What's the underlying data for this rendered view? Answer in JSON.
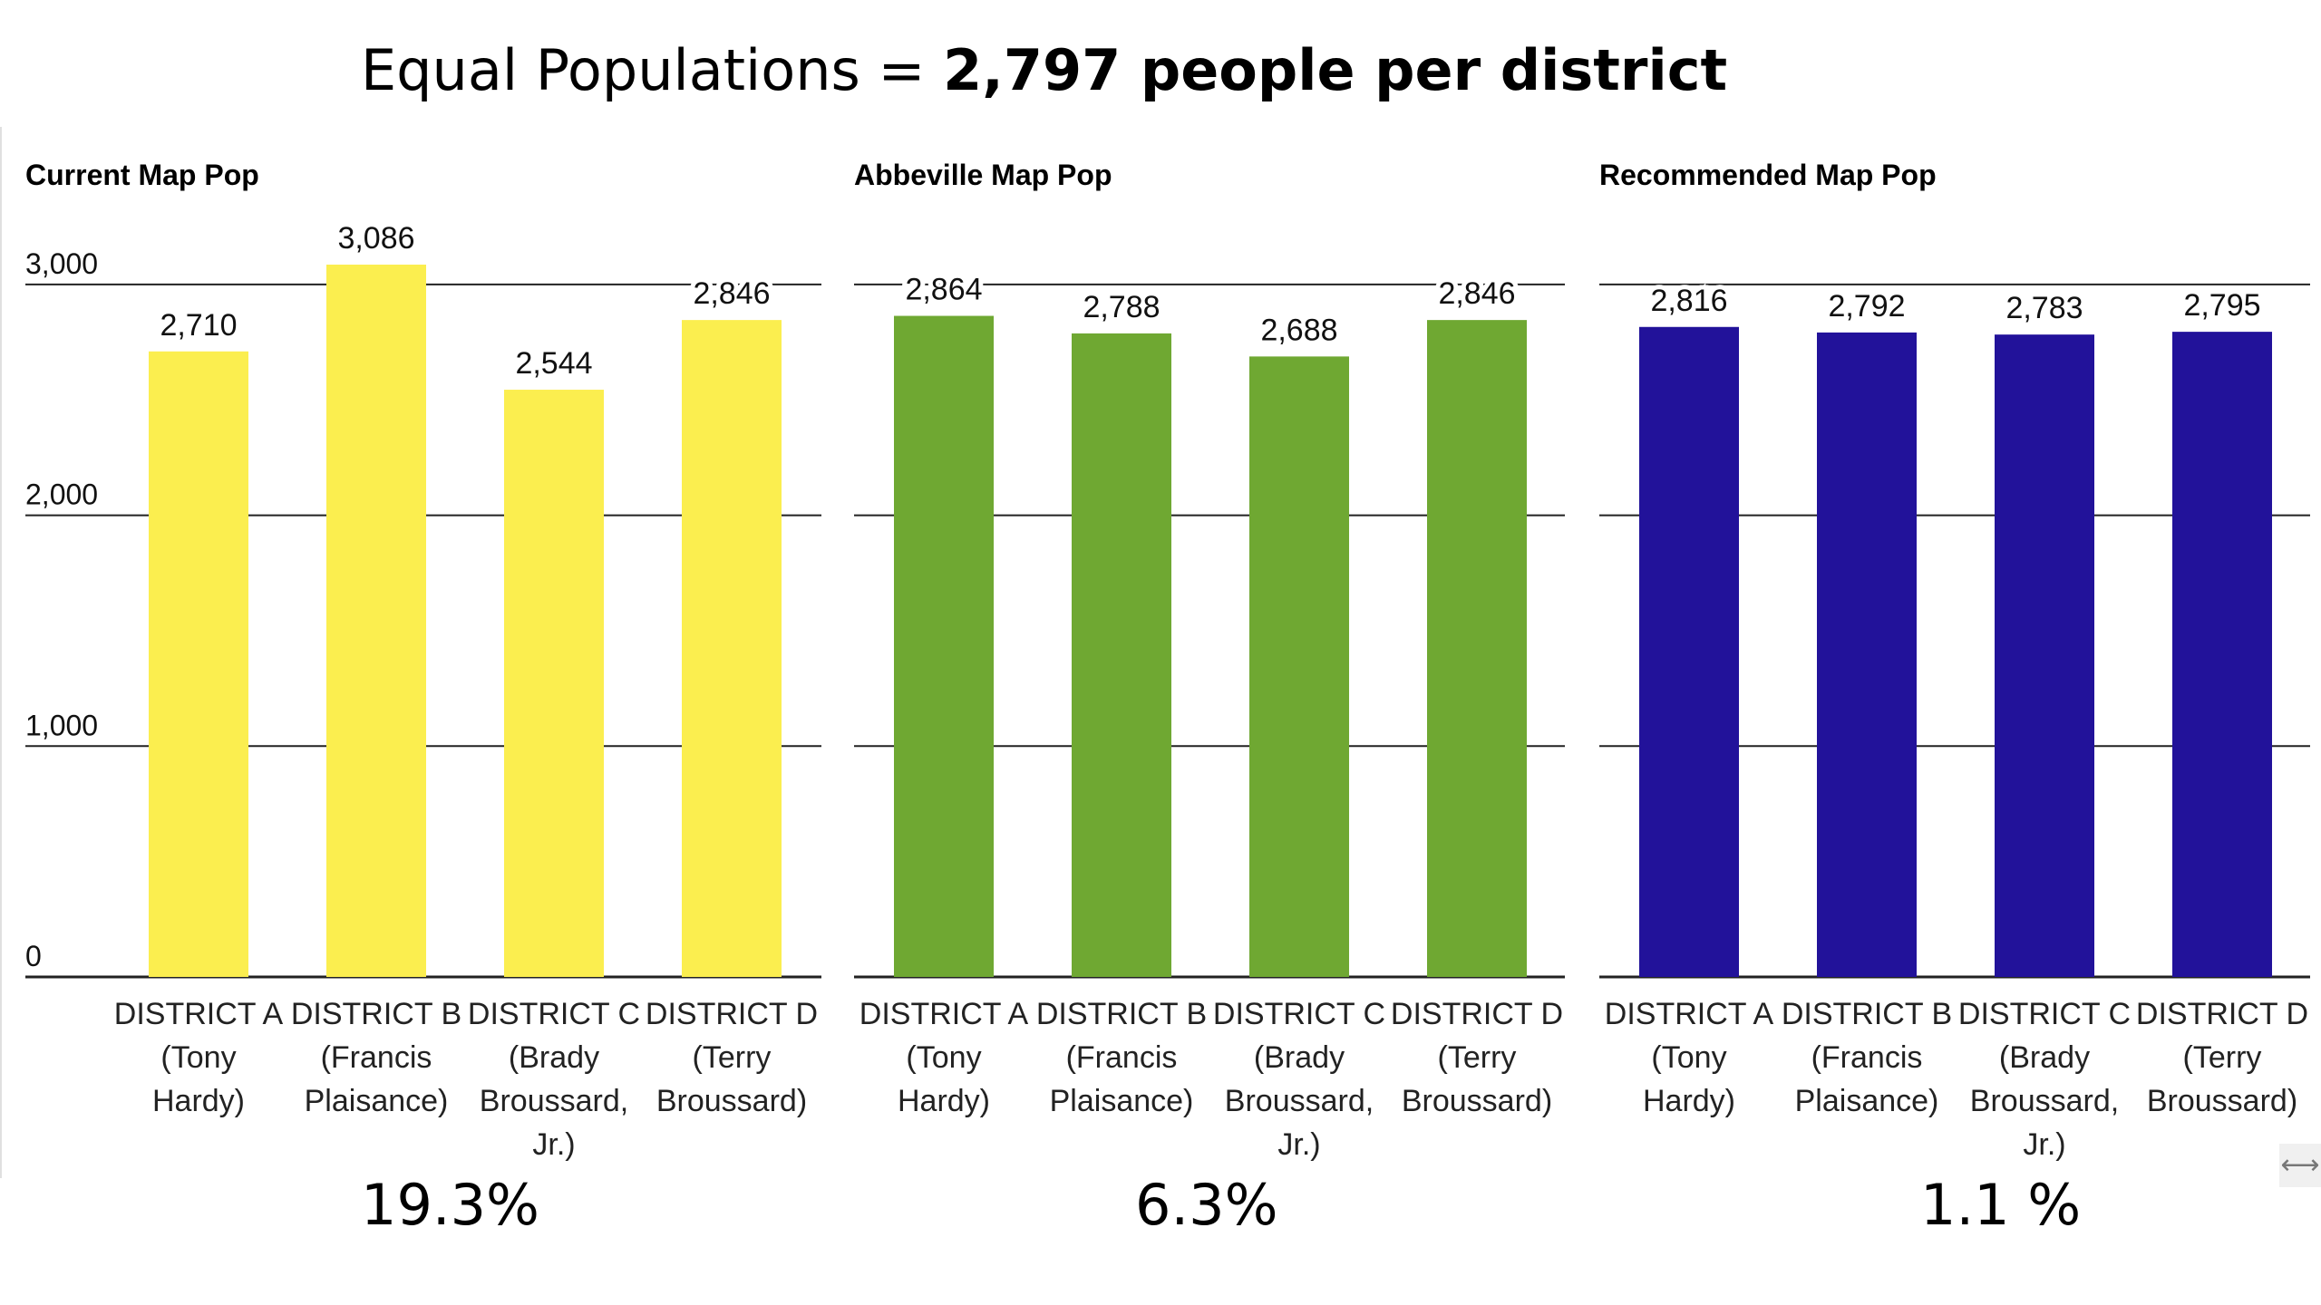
{
  "header": {
    "title_plain": "Equal Populations = ",
    "title_bold": "2,797 people per district"
  },
  "chart_data": [
    {
      "type": "bar",
      "title": "Current Map Pop",
      "categories": [
        [
          "DISTRICT A",
          "(Tony",
          "Hardy)"
        ],
        [
          "DISTRICT B",
          "(Francis",
          "Plaisance)"
        ],
        [
          "DISTRICT C",
          "(Brady",
          "Broussard,",
          "Jr.)"
        ],
        [
          "DISTRICT D",
          "(Terry",
          "Broussard)"
        ]
      ],
      "values": [
        2710,
        3086,
        2544,
        2846
      ],
      "value_labels": [
        "2,710",
        "3,086",
        "2,544",
        "2,846"
      ],
      "color": "#fbee4f",
      "yticks": [
        0,
        1000,
        2000,
        3000
      ],
      "ytick_labels": [
        "0",
        "1,000",
        "2,000",
        "3,000"
      ],
      "ylim": [
        0,
        3086
      ],
      "footer": "19.3%"
    },
    {
      "type": "bar",
      "title": "Abbeville Map Pop",
      "categories": [
        [
          "DISTRICT A",
          "(Tony",
          "Hardy)"
        ],
        [
          "DISTRICT B",
          "(Francis",
          "Plaisance)"
        ],
        [
          "DISTRICT C",
          "(Brady",
          "Broussard,",
          "Jr.)"
        ],
        [
          "DISTRICT D",
          "(Terry",
          "Broussard)"
        ]
      ],
      "values": [
        2864,
        2788,
        2688,
        2846
      ],
      "value_labels": [
        "2,864",
        "2,788",
        "2,688",
        "2,846"
      ],
      "color": "#6fa832",
      "yticks": [
        0,
        1000,
        2000,
        3000
      ],
      "ylim": [
        0,
        3086
      ],
      "footer": "6.3%"
    },
    {
      "type": "bar",
      "title": "Recommended Map Pop",
      "categories": [
        [
          "DISTRICT A",
          "(Tony",
          "Hardy)"
        ],
        [
          "DISTRICT B",
          "(Francis",
          "Plaisance)"
        ],
        [
          "DISTRICT C",
          "(Brady",
          "Broussard,",
          "Jr.)"
        ],
        [
          "DISTRICT D",
          "(Terry",
          "Broussard)"
        ]
      ],
      "values": [
        2816,
        2792,
        2783,
        2795
      ],
      "value_labels": [
        "2,816",
        "2,792",
        "2,783",
        "2,795"
      ],
      "color": "#22129a",
      "yticks": [
        0,
        1000,
        2000,
        3000
      ],
      "ylim": [
        0,
        3086
      ],
      "footer": "1.1 %"
    }
  ],
  "scroll_control": {
    "icon": "horizontal-resize-arrow-icon",
    "glyph": "⟷"
  }
}
